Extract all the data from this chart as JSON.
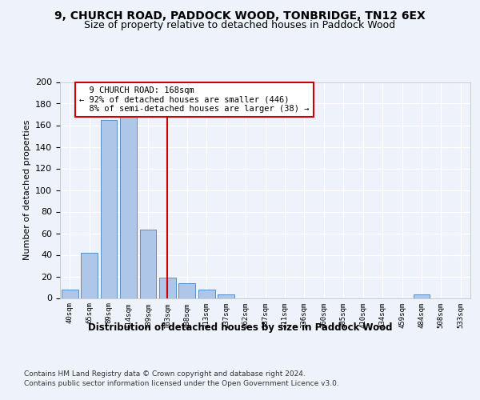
{
  "title_line1": "9, CHURCH ROAD, PADDOCK WOOD, TONBRIDGE, TN12 6EX",
  "title_line2": "Size of property relative to detached houses in Paddock Wood",
  "xlabel": "Distribution of detached houses by size in Paddock Wood",
  "ylabel": "Number of detached properties",
  "footnote1": "Contains HM Land Registry data © Crown copyright and database right 2024.",
  "footnote2": "Contains public sector information licensed under the Open Government Licence v3.0.",
  "bar_labels": [
    "40sqm",
    "65sqm",
    "89sqm",
    "114sqm",
    "139sqm",
    "163sqm",
    "188sqm",
    "213sqm",
    "237sqm",
    "262sqm",
    "287sqm",
    "311sqm",
    "336sqm",
    "360sqm",
    "385sqm",
    "410sqm",
    "434sqm",
    "459sqm",
    "484sqm",
    "508sqm",
    "533sqm"
  ],
  "bar_values": [
    8,
    42,
    165,
    168,
    63,
    19,
    14,
    8,
    3,
    0,
    0,
    0,
    0,
    0,
    0,
    0,
    0,
    0,
    3,
    0,
    0
  ],
  "bar_color": "#aec6e8",
  "bar_edge_color": "#5a8fc4",
  "property_size": 168,
  "property_label": "9 CHURCH ROAD: 168sqm",
  "pct_smaller": 92,
  "n_smaller": 446,
  "pct_larger": 8,
  "n_larger": 38,
  "vline_color": "#cc0000",
  "annotation_box_color": "#cc0000",
  "ylim": [
    0,
    200
  ],
  "yticks": [
    0,
    20,
    40,
    60,
    80,
    100,
    120,
    140,
    160,
    180,
    200
  ],
  "bg_color": "#eef2fa",
  "grid_color": "#ffffff",
  "vline_x_index": 5
}
